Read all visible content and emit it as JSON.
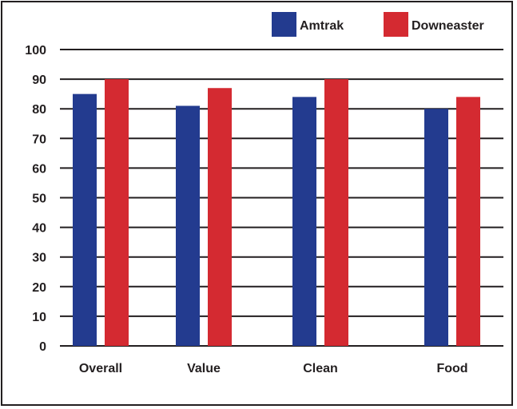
{
  "chart_data": {
    "type": "bar",
    "categories": [
      "Overall",
      "Value",
      "Clean",
      "Food"
    ],
    "series": [
      {
        "name": "Amtrak",
        "values": [
          85,
          81,
          84,
          80
        ],
        "color": "#233b8f"
      },
      {
        "name": "Downeaster",
        "values": [
          90,
          87,
          90,
          84
        ],
        "color": "#d42a31"
      }
    ],
    "yticks": [
      0,
      10,
      20,
      30,
      40,
      50,
      60,
      70,
      80,
      90,
      100
    ],
    "ylim": [
      0,
      100
    ],
    "grid": true,
    "legend": "top-right",
    "title": "",
    "xlabel": "",
    "ylabel": ""
  }
}
